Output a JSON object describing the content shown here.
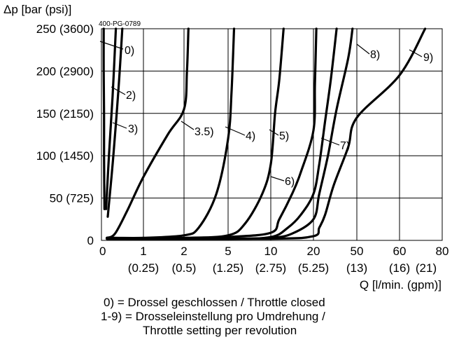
{
  "chart_data": {
    "type": "line",
    "title": "",
    "code": "400-PG-0789",
    "ylabel": "Δp [bar (psi)]",
    "xlabel": "Q [l/min. (gpm)]",
    "ylim": [
      0,
      250
    ],
    "grid": true,
    "y_ticks": [
      {
        "value": 0,
        "label": "0"
      },
      {
        "value": 50,
        "label": "50 (725)"
      },
      {
        "value": 100,
        "label": "100 (1450)"
      },
      {
        "value": 150,
        "label": "150 (2150)"
      },
      {
        "value": 200,
        "label": "200 (2900)"
      },
      {
        "value": 250,
        "label": "250 (3600)"
      }
    ],
    "x_ticks": [
      {
        "value": 0,
        "label": "0",
        "sub": ""
      },
      {
        "value": 1,
        "label": "1",
        "sub": "(0.25)"
      },
      {
        "value": 2,
        "label": "2",
        "sub": "(0.5)"
      },
      {
        "value": 5,
        "label": "5",
        "sub": "(1.25)"
      },
      {
        "value": 10,
        "label": "10",
        "sub": "(2.75)"
      },
      {
        "value": 20,
        "label": "20",
        "sub": "(5.25)"
      },
      {
        "value": 50,
        "label": "50",
        "sub": "(13)"
      },
      {
        "value": 60,
        "label": "60",
        "sub": "(16)"
      },
      {
        "value": 80,
        "label": "80",
        "sub": "(21)"
      }
    ],
    "series": [
      {
        "name": "0)",
        "points": [
          [
            0.02,
            250
          ],
          [
            0.02,
            200
          ],
          [
            0.03,
            150
          ],
          [
            0.03,
            100
          ],
          [
            0.04,
            37
          ]
        ]
      },
      {
        "name": "2)",
        "points": [
          [
            0.08,
            37
          ],
          [
            0.15,
            100
          ],
          [
            0.24,
            170
          ],
          [
            0.32,
            250
          ]
        ]
      },
      {
        "name": "3)",
        "points": [
          [
            0.12,
            28
          ],
          [
            0.25,
            95
          ],
          [
            0.38,
            175
          ],
          [
            0.48,
            250
          ]
        ]
      },
      {
        "name": "3.5)",
        "points": [
          [
            0.1,
            3
          ],
          [
            0.3,
            8
          ],
          [
            0.6,
            35
          ],
          [
            1.0,
            75
          ],
          [
            1.6,
            125
          ],
          [
            2.0,
            155
          ],
          [
            2.2,
            200
          ],
          [
            2.3,
            250
          ]
        ]
      },
      {
        "name": "4)",
        "points": [
          [
            0.1,
            3
          ],
          [
            1.0,
            3
          ],
          [
            2.0,
            6
          ],
          [
            3.0,
            15
          ],
          [
            4.2,
            55
          ],
          [
            5.0,
            120
          ],
          [
            5.4,
            175
          ],
          [
            5.7,
            250
          ]
        ]
      },
      {
        "name": "5)",
        "points": [
          [
            0.1,
            3
          ],
          [
            2.0,
            3
          ],
          [
            5.0,
            6
          ],
          [
            7.0,
            20
          ],
          [
            9.0,
            55
          ],
          [
            10.0,
            90
          ],
          [
            11.0,
            150
          ],
          [
            12.0,
            190
          ],
          [
            13.0,
            250
          ]
        ]
      },
      {
        "name": "6)",
        "points": [
          [
            0.1,
            2
          ],
          [
            2.0,
            2
          ],
          [
            5.0,
            4
          ],
          [
            10.0,
            9
          ],
          [
            12.0,
            25
          ],
          [
            15.0,
            55
          ],
          [
            17.0,
            80
          ],
          [
            20.0,
            130
          ],
          [
            21.0,
            185
          ],
          [
            22.0,
            250
          ]
        ]
      },
      {
        "name": "7)",
        "points": [
          [
            0.1,
            2
          ],
          [
            5.0,
            2
          ],
          [
            10.0,
            4
          ],
          [
            14.0,
            15
          ],
          [
            17.0,
            30
          ],
          [
            20.0,
            55
          ],
          [
            24.0,
            90
          ],
          [
            28.0,
            140
          ],
          [
            32.0,
            190
          ],
          [
            36.0,
            250
          ]
        ]
      },
      {
        "name": "8)",
        "points": [
          [
            0.1,
            2
          ],
          [
            5.0,
            2
          ],
          [
            10.0,
            3
          ],
          [
            15.0,
            8
          ],
          [
            20.0,
            25
          ],
          [
            24.0,
            55
          ],
          [
            30.0,
            100
          ],
          [
            36.0,
            155
          ],
          [
            44.0,
            215
          ],
          [
            47.0,
            250
          ]
        ]
      },
      {
        "name": "9)",
        "points": [
          [
            0.1,
            2
          ],
          [
            10.0,
            2
          ],
          [
            20.0,
            5
          ],
          [
            24.0,
            15
          ],
          [
            28.0,
            30
          ],
          [
            34.0,
            65
          ],
          [
            44.0,
            110
          ],
          [
            50.0,
            145
          ],
          [
            60.0,
            195
          ],
          [
            72.0,
            250
          ]
        ]
      }
    ]
  },
  "notes": [
    "0) = Drossel geschlossen / Throttle closed",
    "1-9) = Drosseleinstellung pro Umdrehung /",
    "Throttle setting per revolution"
  ]
}
